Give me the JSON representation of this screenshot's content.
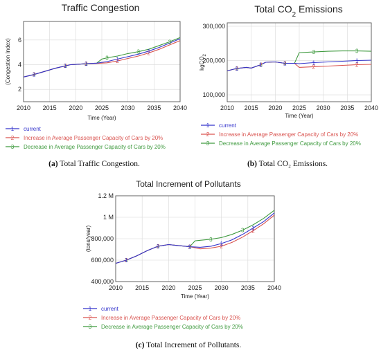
{
  "legend": {
    "entries": [
      {
        "marker": "1",
        "label": "current"
      },
      {
        "marker": "2",
        "label": "Increase in Average Passenger Capacity of Cars by 20%"
      },
      {
        "marker": "3",
        "label": "Decrease in Average Passenger Capacity of Cars by 20%"
      }
    ]
  },
  "colors": {
    "current": "#3333cc",
    "increase": "#d9534f",
    "decrease": "#3f9a3f",
    "axis": "#555555",
    "grid": "#d8d8d8"
  },
  "captions": {
    "a": {
      "label": "(a)",
      "text": " Total Traffic Congestion."
    },
    "b": {
      "label": "(b)",
      "text": " Total CO₂ Emissions."
    },
    "c": {
      "label": "(c)",
      "text": " Total Increment of Pollutants."
    }
  },
  "chart_data": [
    {
      "id": "a",
      "type": "line",
      "title": "Traffic Congestion",
      "title_sub": "",
      "title_tail": "",
      "xlabel": "Time (Year)",
      "ylabel": "(Congestion Index)",
      "ylabel_sub": "",
      "xlim": [
        2010,
        2040
      ],
      "ylim": [
        1,
        7.5
      ],
      "xticks": [
        2010,
        2015,
        2020,
        2025,
        2030,
        2035,
        2040
      ],
      "yticks": [
        2,
        4,
        6
      ],
      "ytick_labels": [
        "2",
        "4",
        "6"
      ],
      "grid": true,
      "series": [
        {
          "name": "current",
          "marker": "1",
          "x": [
            2010,
            2012,
            2014,
            2016,
            2018,
            2019,
            2020,
            2022,
            2024,
            2026,
            2028,
            2030,
            2032,
            2034,
            2036,
            2038,
            2040
          ],
          "y": [
            3.0,
            3.2,
            3.45,
            3.7,
            3.9,
            4.0,
            4.02,
            4.08,
            4.12,
            4.25,
            4.45,
            4.65,
            4.85,
            5.1,
            5.4,
            5.75,
            6.1
          ]
        },
        {
          "name": "Increase in Average Passenger Capacity of Cars by 20%",
          "marker": "2",
          "x": [
            2010,
            2012,
            2014,
            2016,
            2018,
            2019,
            2020,
            2022,
            2024,
            2026,
            2028,
            2030,
            2032,
            2034,
            2036,
            2038,
            2040
          ],
          "y": [
            3.0,
            3.2,
            3.45,
            3.7,
            3.9,
            4.0,
            4.02,
            4.08,
            4.1,
            4.15,
            4.3,
            4.5,
            4.7,
            4.95,
            5.25,
            5.6,
            5.95
          ]
        },
        {
          "name": "Decrease in Average Passenger Capacity of Cars by 20%",
          "marker": "3",
          "x": [
            2010,
            2012,
            2014,
            2016,
            2018,
            2019,
            2020,
            2022,
            2024,
            2025,
            2026,
            2028,
            2030,
            2032,
            2034,
            2036,
            2038,
            2040
          ],
          "y": [
            3.0,
            3.2,
            3.45,
            3.7,
            3.9,
            4.0,
            4.02,
            4.08,
            4.12,
            4.45,
            4.55,
            4.7,
            4.9,
            5.05,
            5.25,
            5.55,
            5.85,
            6.2
          ]
        }
      ]
    },
    {
      "id": "b",
      "type": "line",
      "title": "Total CO",
      "title_sub": "2",
      "title_tail": " Emissions",
      "xlabel": "Time (Year)",
      "ylabel": "kgCO",
      "ylabel_sub": "2",
      "xlim": [
        2010,
        2040
      ],
      "ylim": [
        80000,
        310000
      ],
      "xticks": [
        2010,
        2015,
        2020,
        2025,
        2030,
        2035,
        2040
      ],
      "yticks": [
        100000,
        200000,
        300000
      ],
      "ytick_labels": [
        "100,000",
        "200,000",
        "300,000"
      ],
      "grid": true,
      "series": [
        {
          "name": "current",
          "marker": "1",
          "x": [
            2010,
            2012,
            2014,
            2015,
            2017,
            2018,
            2020,
            2022,
            2024,
            2025,
            2028,
            2031,
            2034,
            2037,
            2040
          ],
          "y": [
            170000,
            177000,
            180000,
            178000,
            188000,
            195000,
            196000,
            192000,
            192000,
            191000,
            194000,
            196000,
            198000,
            200000,
            201000
          ]
        },
        {
          "name": "Increase in Average Passenger Capacity of Cars by 20%",
          "marker": "2",
          "x": [
            2010,
            2012,
            2014,
            2015,
            2017,
            2018,
            2020,
            2022,
            2024,
            2025,
            2028,
            2031,
            2034,
            2037,
            2040
          ],
          "y": [
            170000,
            177000,
            180000,
            178000,
            188000,
            195000,
            196000,
            192000,
            192000,
            180000,
            182000,
            184000,
            186000,
            188000,
            189000
          ]
        },
        {
          "name": "Decrease in Average Passenger Capacity of Cars by 20%",
          "marker": "3",
          "x": [
            2010,
            2012,
            2014,
            2015,
            2017,
            2018,
            2020,
            2022,
            2024,
            2025,
            2028,
            2031,
            2034,
            2037,
            2040
          ],
          "y": [
            170000,
            177000,
            180000,
            178000,
            188000,
            195000,
            196000,
            192000,
            192000,
            223000,
            225000,
            227000,
            228000,
            228000,
            227000
          ]
        }
      ]
    },
    {
      "id": "c",
      "type": "line",
      "title": "Total Increment of Pollutants",
      "title_sub": "",
      "title_tail": "",
      "xlabel": "Time (Year)",
      "ylabel": "(tons/year)",
      "ylabel_sub": "",
      "xlim": [
        2010,
        2040
      ],
      "ylim": [
        400000,
        1200000
      ],
      "xticks": [
        2010,
        2015,
        2020,
        2025,
        2030,
        2035,
        2040
      ],
      "yticks": [
        400000,
        600000,
        800000,
        1000000,
        1200000
      ],
      "ytick_labels": [
        "400,000",
        "600,000",
        "800,000",
        "1 M",
        "1.2 M"
      ],
      "grid": true,
      "series": [
        {
          "name": "current",
          "marker": "1",
          "x": [
            2010,
            2012,
            2014,
            2016,
            2018,
            2020,
            2022,
            2024,
            2026,
            2028,
            2030,
            2032,
            2034,
            2036,
            2038,
            2040
          ],
          "y": [
            570000,
            600000,
            640000,
            690000,
            730000,
            745000,
            735000,
            725000,
            720000,
            730000,
            755000,
            790000,
            840000,
            900000,
            960000,
            1040000
          ]
        },
        {
          "name": "Increase in Average Passenger Capacity of Cars by 20%",
          "marker": "2",
          "x": [
            2010,
            2012,
            2014,
            2016,
            2018,
            2020,
            2022,
            2024,
            2026,
            2028,
            2030,
            2032,
            2034,
            2036,
            2038,
            2040
          ],
          "y": [
            570000,
            600000,
            640000,
            690000,
            730000,
            745000,
            735000,
            725000,
            705000,
            712000,
            730000,
            765000,
            815000,
            875000,
            940000,
            1020000
          ]
        },
        {
          "name": "Decrease in Average Passenger Capacity of Cars by 20%",
          "marker": "3",
          "x": [
            2010,
            2012,
            2014,
            2016,
            2018,
            2020,
            2022,
            2024,
            2025,
            2026,
            2028,
            2030,
            2032,
            2034,
            2036,
            2038,
            2040
          ],
          "y": [
            570000,
            600000,
            640000,
            690000,
            730000,
            745000,
            735000,
            725000,
            780000,
            785000,
            795000,
            810000,
            840000,
            880000,
            930000,
            990000,
            1065000
          ]
        }
      ]
    }
  ]
}
